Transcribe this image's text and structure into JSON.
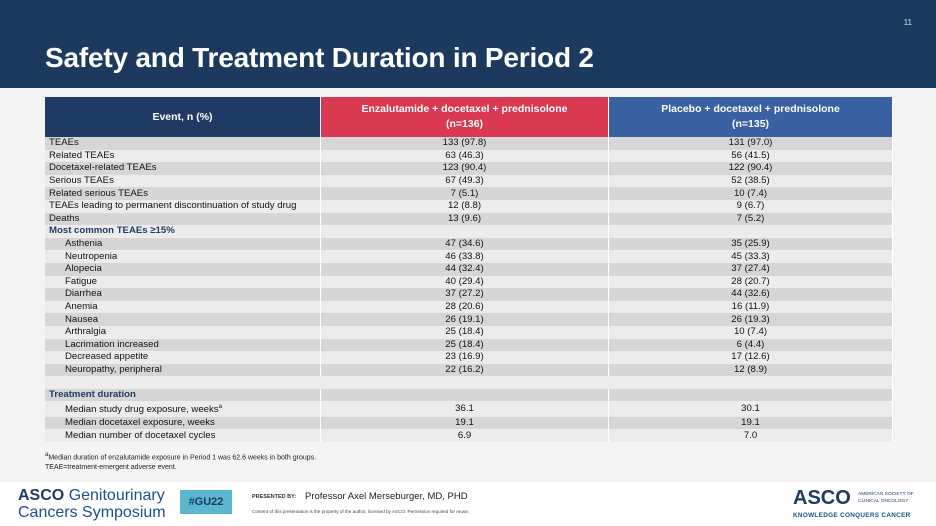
{
  "slide_number": "11",
  "title": "Safety and Treatment Duration in Period 2",
  "table": {
    "header": {
      "event": "Event, n (%)",
      "arms": [
        {
          "name": "Enzalutamide + docetaxel + prednisolone",
          "n": "(n=136)"
        },
        {
          "name": "Placebo + docetaxel + prednisolone",
          "n": "(n=135)"
        }
      ]
    },
    "sections": [
      {
        "rows": [
          {
            "cells": [
              "TEAEs",
              "133 (97.8)",
              "131 (97.0)"
            ]
          },
          {
            "cells": [
              "Related TEAEs",
              "63 (46.3)",
              "56 (41.5)"
            ]
          },
          {
            "cells": [
              "Docetaxel-related TEAEs",
              "123 (90.4)",
              "122 (90.4)"
            ]
          },
          {
            "cells": [
              "Serious TEAEs",
              "67 (49.3)",
              "52 (38.5)"
            ]
          },
          {
            "cells": [
              "Related serious TEAEs",
              "7 (5.1)",
              "10 (7.4)"
            ]
          },
          {
            "cells": [
              "TEAEs leading to permanent discontinuation of study drug",
              "12 (8.8)",
              "9 (6.7)"
            ]
          },
          {
            "cells": [
              "Deaths",
              "13 (9.6)",
              "7 (5.2)"
            ]
          }
        ]
      },
      {
        "title": "Most common TEAEs ≥15%",
        "rows": [
          {
            "cells": [
              "Asthenia",
              "47 (34.6)",
              "35 (25.9)"
            ]
          },
          {
            "cells": [
              "Neutropenia",
              "46 (33.8)",
              "45 (33.3)"
            ]
          },
          {
            "cells": [
              "Alopecia",
              "44 (32.4)",
              "37 (27.4)"
            ]
          },
          {
            "cells": [
              "Fatigue",
              "40 (29.4)",
              "28 (20.7)"
            ]
          },
          {
            "cells": [
              "Diarrhea",
              "37 (27.2)",
              "44 (32.6)"
            ]
          },
          {
            "cells": [
              "Anemia",
              "28 (20.6)",
              "16 (11.9)"
            ]
          },
          {
            "cells": [
              "Nausea",
              "26 (19.1)",
              "26 (19.3)"
            ]
          },
          {
            "cells": [
              "Arthralgia",
              "25 (18.4)",
              "10 (7.4)"
            ]
          },
          {
            "cells": [
              "Lacrimation increased",
              "25 (18.4)",
              "6 (4.4)"
            ]
          },
          {
            "cells": [
              "Decreased appetite",
              "23 (16.9)",
              "17 (12.6)"
            ]
          },
          {
            "cells": [
              "Neuropathy, peripheral",
              "22 (16.2)",
              "12 (8.9)"
            ]
          }
        ]
      },
      {
        "title": "Treatment duration",
        "rows": [
          {
            "cells": [
              "Median study drug exposure, weeks",
              "36.1",
              "30.1"
            ],
            "mark": "a"
          },
          {
            "cells": [
              "Median docetaxel exposure, weeks",
              "19.1",
              "19.1"
            ]
          },
          {
            "cells": [
              "Median number of docetaxel cycles",
              "6.9",
              "7.0"
            ]
          }
        ]
      }
    ]
  },
  "footnotes": [
    {
      "mark": "a",
      "text": "Median duration of enzalutamide exposure in Period 1 was 62.6 weeks in both groups."
    },
    {
      "text": "TEAE=treatment-emergent adverse event."
    }
  ],
  "footer": {
    "meeting_org": "ASCO",
    "meeting_line1": "Genitourinary",
    "meeting_line2": "Cancers Symposium",
    "hashtag": "#GU22",
    "presented_by": "PRESENTED BY:",
    "presenter": "Professor Axel Merseburger, MD, PHD",
    "disclaimer": "Content of this presentation is the property of the author, licensed by ASCO. Permission required for reuse.",
    "asco": "ASCO",
    "asco_line1": "AMERICAN SOCIETY OF",
    "asco_line2": "CLINICAL ONCOLOGY",
    "tagline": "KNOWLEDGE CONQUERS CANCER"
  }
}
